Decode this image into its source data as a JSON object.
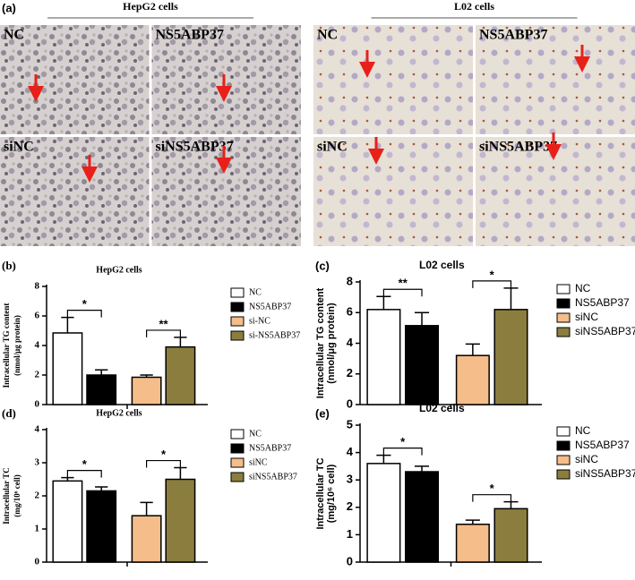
{
  "panel_a": {
    "label": "(a)",
    "groups": [
      {
        "title": "HepG2 cells",
        "images": [
          "NC",
          "NS5ABP37",
          "siNC",
          "siNS5ABP37"
        ]
      },
      {
        "title": "L02 cells",
        "images": [
          "NC",
          "NS5ABP37",
          "siNC",
          "siNS5ABP37"
        ]
      }
    ]
  },
  "chart_data": [
    {
      "type": "bar",
      "panel_label": "(b)",
      "title": "HepG2 cells",
      "ylabel": [
        "Intracellular TG content",
        "(nmol/μg protein)"
      ],
      "categories": [
        "NC",
        "NS5ABP37",
        "si-NC",
        "si-NS5ABP37"
      ],
      "values": [
        4.85,
        2.0,
        1.85,
        3.9
      ],
      "errors": [
        1.05,
        0.35,
        0.15,
        0.65
      ],
      "colors": [
        "#ffffff",
        "#000000",
        "#f5bd8a",
        "#8b7d3e"
      ],
      "ylim": [
        0,
        8
      ],
      "yticks": [
        0,
        2,
        4,
        6,
        8
      ],
      "significance": [
        {
          "label": "*",
          "from": 0,
          "to": 1
        },
        {
          "label": "**",
          "from": 2,
          "to": 3
        }
      ]
    },
    {
      "type": "bar",
      "panel_label": "(c)",
      "title": "L02 cells",
      "ylabel": [
        "Intracellular TG content",
        "(nmol/μg protein)"
      ],
      "categories": [
        "NC",
        "NS5ABP37",
        "siNC",
        "siNS5ABP37"
      ],
      "values": [
        6.2,
        5.15,
        3.2,
        6.2
      ],
      "errors": [
        0.85,
        0.85,
        0.75,
        1.4
      ],
      "colors": [
        "#ffffff",
        "#000000",
        "#f5bd8a",
        "#8b7d3e"
      ],
      "ylim": [
        0,
        8
      ],
      "yticks": [
        0,
        2,
        4,
        6,
        8
      ],
      "significance": [
        {
          "label": "**",
          "from": 0,
          "to": 1
        },
        {
          "label": "*",
          "from": 2,
          "to": 3
        }
      ]
    },
    {
      "type": "bar",
      "panel_label": "(d)",
      "title": "HepG2 cells",
      "ylabel": [
        "Intracellular TC",
        "(mg/10⁶ cell)"
      ],
      "categories": [
        "NC",
        "NS5ABP37",
        "siNC",
        "siNS5ABP37"
      ],
      "values": [
        2.45,
        2.15,
        1.4,
        2.5
      ],
      "errors": [
        0.1,
        0.12,
        0.4,
        0.35
      ],
      "colors": [
        "#ffffff",
        "#000000",
        "#f5bd8a",
        "#8b7d3e"
      ],
      "ylim": [
        0,
        4
      ],
      "yticks": [
        0,
        1,
        2,
        3,
        4
      ],
      "significance": [
        {
          "label": "*",
          "from": 0,
          "to": 1
        },
        {
          "label": "*",
          "from": 2,
          "to": 3
        }
      ]
    },
    {
      "type": "bar",
      "panel_label": "(e)",
      "title": "L02 cells",
      "ylabel": [
        "Intracellular TC",
        "(mg/10⁶ cell)"
      ],
      "categories": [
        "NC",
        "NS5ABP37",
        "siNC",
        "siNS5ABP37"
      ],
      "values": [
        3.6,
        3.3,
        1.38,
        1.95
      ],
      "errors": [
        0.3,
        0.2,
        0.15,
        0.25
      ],
      "colors": [
        "#ffffff",
        "#000000",
        "#f5bd8a",
        "#8b7d3e"
      ],
      "ylim": [
        0,
        5
      ],
      "yticks": [
        0,
        1,
        2,
        3,
        4,
        5
      ],
      "significance": [
        {
          "label": "*",
          "from": 0,
          "to": 1
        },
        {
          "label": "*",
          "from": 2,
          "to": 3
        }
      ]
    }
  ]
}
